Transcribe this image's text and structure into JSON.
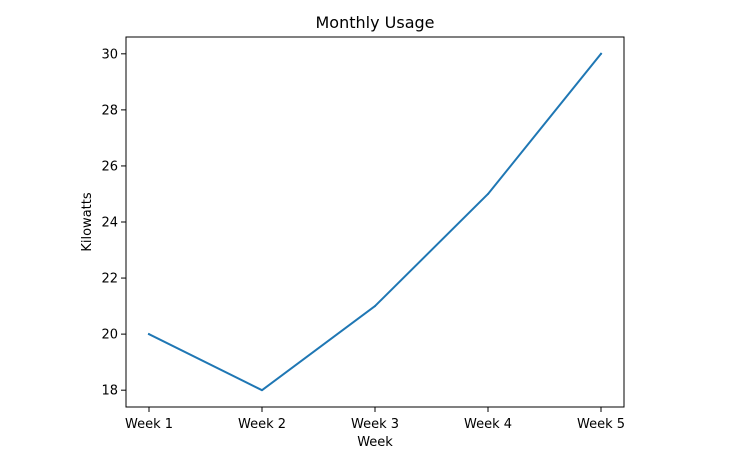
{
  "chart_data": {
    "type": "line",
    "title": "Monthly Usage",
    "xlabel": "Week",
    "ylabel": "Kilowatts",
    "categories": [
      "Week 1",
      "Week 2",
      "Week 3",
      "Week 4",
      "Week 5"
    ],
    "series": [
      {
        "values": [
          20,
          18,
          21,
          25,
          30
        ],
        "color": "#1f77b4"
      }
    ],
    "ylim": [
      17.4,
      30.6
    ],
    "yticks": [
      18,
      20,
      22,
      24,
      26,
      28,
      30
    ],
    "grid": false
  }
}
